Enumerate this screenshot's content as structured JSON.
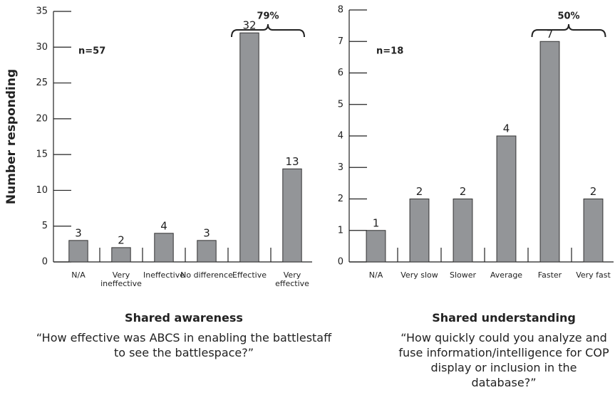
{
  "chart_data": [
    {
      "type": "bar",
      "ylabel": "Number responding",
      "annotation": "n=57",
      "bracket_label": "79%",
      "categories": [
        "N/A",
        "Very ineffective",
        "Ineffective",
        "No difference",
        "Effective",
        "Very effective"
      ],
      "values": [
        3,
        2,
        4,
        3,
        32,
        13
      ],
      "color": "#939598",
      "ylim": [
        0,
        35
      ],
      "yticks": [
        0,
        5,
        10,
        15,
        20,
        25,
        30,
        35
      ],
      "title": "Shared awareness",
      "subtitle": "“How effective was ABCS in enabling the battlestaff to see the battlespace?”"
    },
    {
      "type": "bar",
      "annotation": "n=18",
      "bracket_label": "50%",
      "categories": [
        "N/A",
        "Very slow",
        "Slower",
        "Average",
        "Faster",
        "Very fast"
      ],
      "values": [
        1,
        2,
        2,
        4,
        7,
        2
      ],
      "color": "#939598",
      "ylim": [
        0,
        8
      ],
      "yticks": [
        0,
        1,
        2,
        3,
        4,
        5,
        6,
        7,
        8
      ],
      "title": "Shared understanding",
      "subtitle": "“How quickly could you analyze and fuse information/intelligence for COP display or inclusion in the database?”"
    }
  ]
}
